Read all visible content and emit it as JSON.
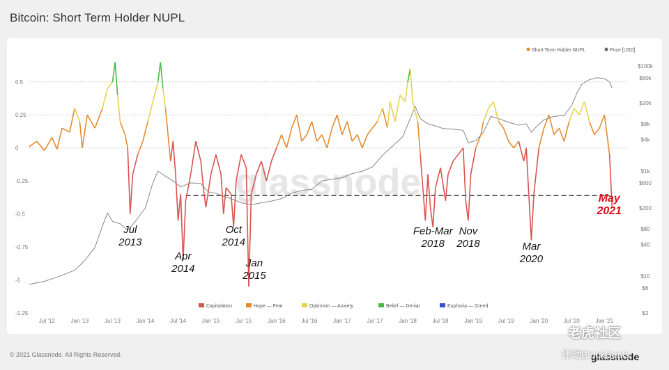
{
  "title": "Bitcoin: Short Term Holder NUPL",
  "footer": {
    "copyright": "© 2021 Glassnode. All Rights Reserved.",
    "brand": "glassnode"
  },
  "watermark": {
    "cn": "老虎社区",
    "cn2": "律动BlockBeats",
    "center": "glassnode"
  },
  "colors": {
    "capitulation": "#d9534f",
    "hope": "#e68a2e",
    "optimism": "#e8d44d",
    "belief": "#4cb84c",
    "euphoria": "#3a4fcf",
    "price": "#888888"
  },
  "chart_data": {
    "type": "line",
    "title": "Bitcoin: Short Term Holder NUPL",
    "x_ticks": [
      "Jul '12",
      "Jan '13",
      "Jul '13",
      "Jan '14",
      "Jul '14",
      "Jan '15",
      "Jul '15",
      "Jan '16",
      "Jul '16",
      "Jan '17",
      "Jul '17",
      "Jan '18",
      "Jul '18",
      "Jan '19",
      "Jul '19",
      "Jan '20",
      "Jul '20",
      "Jan '21"
    ],
    "left_axis": {
      "ticks": [
        "0.5",
        "0.25",
        "0",
        "-0.25",
        "-0.5",
        "-0.75",
        "-1",
        "-1.25"
      ],
      "values": [
        0.5,
        0.25,
        0,
        -0.25,
        -0.5,
        -0.75,
        -1,
        -1.25
      ],
      "range": [
        -1.25,
        0.62
      ]
    },
    "right_axis": {
      "scale": "log",
      "ticks": [
        "$100k",
        "$60k",
        "$20k",
        "$8k",
        "$4k",
        "$1k",
        "$600",
        "$200",
        "$80",
        "$40",
        "$10",
        "$6",
        "$2"
      ],
      "values": [
        100000,
        60000,
        20000,
        8000,
        4000,
        1000,
        600,
        200,
        80,
        40,
        10,
        6,
        2
      ],
      "range": [
        2,
        100000
      ]
    },
    "legend_top": [
      {
        "label": "Short Term Holder NUPL",
        "color": "#e68a2e"
      },
      {
        "label": "Price [USD]",
        "color": "#666666"
      }
    ],
    "legend_bottom": [
      {
        "label": "Capitulation",
        "color": "#d9534f"
      },
      {
        "label": "Hope — Fear",
        "color": "#e68a2e"
      },
      {
        "label": "Optimism — Anxiety",
        "color": "#e8d44d"
      },
      {
        "label": "Belief — Denial",
        "color": "#4cb84c"
      },
      {
        "label": "Euphoria — Greed",
        "color": "#3a4fcf"
      }
    ],
    "reference_line": {
      "value": -0.36,
      "style": "dashed"
    },
    "series": [
      {
        "name": "Short Term Holder NUPL",
        "points": [
          [
            0,
            0.01
          ],
          [
            0.15,
            0.05
          ],
          [
            0.3,
            -0.02
          ],
          [
            0.45,
            0.08
          ],
          [
            0.55,
            -0.01
          ],
          [
            0.65,
            0.15
          ],
          [
            0.8,
            0.12
          ],
          [
            0.9,
            0.3
          ],
          [
            1.0,
            0.2
          ],
          [
            1.05,
            0.0
          ],
          [
            1.15,
            0.25
          ],
          [
            1.3,
            0.15
          ],
          [
            1.45,
            0.3
          ],
          [
            1.55,
            0.45
          ],
          [
            1.65,
            0.5
          ],
          [
            1.7,
            0.65
          ],
          [
            1.75,
            0.4
          ],
          [
            1.8,
            0.2
          ],
          [
            1.9,
            0.1
          ],
          [
            1.95,
            0.0
          ],
          [
            2.0,
            -0.5
          ],
          [
            2.05,
            -0.2
          ],
          [
            2.15,
            -0.05
          ],
          [
            2.25,
            0.05
          ],
          [
            2.35,
            0.2
          ],
          [
            2.45,
            0.35
          ],
          [
            2.55,
            0.5
          ],
          [
            2.6,
            0.65
          ],
          [
            2.65,
            0.45
          ],
          [
            2.7,
            0.3
          ],
          [
            2.75,
            0.1
          ],
          [
            2.8,
            -0.1
          ],
          [
            2.85,
            0.05
          ],
          [
            2.9,
            -0.2
          ],
          [
            2.95,
            -0.55
          ],
          [
            3.0,
            -0.35
          ],
          [
            3.05,
            -0.85
          ],
          [
            3.1,
            -0.4
          ],
          [
            3.2,
            -0.2
          ],
          [
            3.3,
            0.05
          ],
          [
            3.4,
            -0.1
          ],
          [
            3.45,
            -0.3
          ],
          [
            3.5,
            -0.45
          ],
          [
            3.6,
            -0.2
          ],
          [
            3.7,
            -0.05
          ],
          [
            3.8,
            -0.2
          ],
          [
            3.85,
            -0.5
          ],
          [
            3.9,
            -0.3
          ],
          [
            4.0,
            -0.35
          ],
          [
            4.05,
            -0.6
          ],
          [
            4.1,
            -0.25
          ],
          [
            4.2,
            -0.05
          ],
          [
            4.3,
            -0.15
          ],
          [
            4.35,
            -1.05
          ],
          [
            4.4,
            -0.35
          ],
          [
            4.5,
            -0.2
          ],
          [
            4.6,
            -0.1
          ],
          [
            4.7,
            -0.25
          ],
          [
            4.8,
            -0.1
          ],
          [
            4.9,
            0.0
          ],
          [
            5.0,
            0.1
          ],
          [
            5.1,
            0.0
          ],
          [
            5.2,
            0.15
          ],
          [
            5.3,
            0.25
          ],
          [
            5.4,
            0.05
          ],
          [
            5.5,
            0.1
          ],
          [
            5.6,
            0.2
          ],
          [
            5.7,
            0.05
          ],
          [
            5.8,
            0.1
          ],
          [
            5.9,
            0.0
          ],
          [
            6.0,
            0.15
          ],
          [
            6.1,
            0.25
          ],
          [
            6.2,
            0.1
          ],
          [
            6.3,
            0.2
          ],
          [
            6.4,
            0.05
          ],
          [
            6.5,
            0.1
          ],
          [
            6.6,
            0.0
          ],
          [
            6.7,
            0.1
          ],
          [
            6.8,
            0.15
          ],
          [
            6.9,
            0.2
          ],
          [
            7.0,
            0.3
          ],
          [
            7.1,
            0.15
          ],
          [
            7.15,
            0.35
          ],
          [
            7.25,
            0.2
          ],
          [
            7.35,
            0.4
          ],
          [
            7.45,
            0.35
          ],
          [
            7.5,
            0.5
          ],
          [
            7.55,
            0.6
          ],
          [
            7.6,
            0.35
          ],
          [
            7.7,
            0.2
          ],
          [
            7.75,
            -0.05
          ],
          [
            7.8,
            -0.3
          ],
          [
            7.85,
            -0.55
          ],
          [
            7.9,
            -0.2
          ],
          [
            7.95,
            -0.45
          ],
          [
            8.0,
            -0.6
          ],
          [
            8.05,
            -0.3
          ],
          [
            8.15,
            -0.15
          ],
          [
            8.25,
            -0.4
          ],
          [
            8.3,
            -0.2
          ],
          [
            8.4,
            -0.1
          ],
          [
            8.5,
            -0.05
          ],
          [
            8.6,
            0.0
          ],
          [
            8.65,
            -0.4
          ],
          [
            8.7,
            -0.55
          ],
          [
            8.75,
            -0.2
          ],
          [
            8.85,
            0.0
          ],
          [
            8.95,
            0.1
          ],
          [
            9.0,
            0.2
          ],
          [
            9.1,
            0.3
          ],
          [
            9.2,
            0.35
          ],
          [
            9.3,
            0.2
          ],
          [
            9.4,
            0.15
          ],
          [
            9.5,
            0.05
          ],
          [
            9.6,
            0.0
          ],
          [
            9.7,
            0.05
          ],
          [
            9.8,
            -0.1
          ],
          [
            9.85,
            0.0
          ],
          [
            9.9,
            -0.35
          ],
          [
            9.95,
            -0.7
          ],
          [
            10.0,
            -0.35
          ],
          [
            10.1,
            0.0
          ],
          [
            10.2,
            0.15
          ],
          [
            10.3,
            0.25
          ],
          [
            10.4,
            0.1
          ],
          [
            10.5,
            0.15
          ],
          [
            10.6,
            0.05
          ],
          [
            10.7,
            0.2
          ],
          [
            10.8,
            0.3
          ],
          [
            10.9,
            0.25
          ],
          [
            11.0,
            0.35
          ],
          [
            11.1,
            0.2
          ],
          [
            11.2,
            0.1
          ],
          [
            11.3,
            0.15
          ],
          [
            11.4,
            0.25
          ],
          [
            11.45,
            0.1
          ],
          [
            11.5,
            -0.05
          ],
          [
            11.55,
            -0.45
          ]
        ]
      },
      {
        "name": "Price [USD]",
        "points": [
          [
            0,
            7
          ],
          [
            0.3,
            8
          ],
          [
            0.6,
            10
          ],
          [
            0.9,
            13
          ],
          [
            1.1,
            20
          ],
          [
            1.3,
            35
          ],
          [
            1.45,
            90
          ],
          [
            1.55,
            160
          ],
          [
            1.65,
            110
          ],
          [
            1.8,
            100
          ],
          [
            1.95,
            75
          ],
          [
            2.1,
            110
          ],
          [
            2.3,
            200
          ],
          [
            2.45,
            600
          ],
          [
            2.55,
            1000
          ],
          [
            2.7,
            800
          ],
          [
            2.85,
            650
          ],
          [
            3.0,
            500
          ],
          [
            3.2,
            600
          ],
          [
            3.4,
            580
          ],
          [
            3.55,
            400
          ],
          [
            3.7,
            380
          ],
          [
            3.85,
            330
          ],
          [
            4.0,
            300
          ],
          [
            4.2,
            250
          ],
          [
            4.4,
            230
          ],
          [
            4.6,
            250
          ],
          [
            4.8,
            270
          ],
          [
            5.0,
            300
          ],
          [
            5.2,
            380
          ],
          [
            5.4,
            430
          ],
          [
            5.6,
            450
          ],
          [
            5.8,
            650
          ],
          [
            6.0,
            700
          ],
          [
            6.2,
            750
          ],
          [
            6.4,
            900
          ],
          [
            6.6,
            1000
          ],
          [
            6.8,
            1200
          ],
          [
            7.0,
            2000
          ],
          [
            7.2,
            3000
          ],
          [
            7.4,
            4500
          ],
          [
            7.55,
            10000
          ],
          [
            7.65,
            17000
          ],
          [
            7.75,
            10000
          ],
          [
            7.9,
            8000
          ],
          [
            8.0,
            7500
          ],
          [
            8.2,
            6500
          ],
          [
            8.4,
            6300
          ],
          [
            8.6,
            6000
          ],
          [
            8.7,
            3500
          ],
          [
            8.85,
            3800
          ],
          [
            9.0,
            5500
          ],
          [
            9.15,
            11000
          ],
          [
            9.3,
            10000
          ],
          [
            9.5,
            8500
          ],
          [
            9.7,
            7500
          ],
          [
            9.85,
            8000
          ],
          [
            9.95,
            5500
          ],
          [
            10.05,
            7000
          ],
          [
            10.2,
            9500
          ],
          [
            10.4,
            11000
          ],
          [
            10.6,
            11500
          ],
          [
            10.75,
            18000
          ],
          [
            10.85,
            30000
          ],
          [
            10.95,
            45000
          ],
          [
            11.1,
            55000
          ],
          [
            11.25,
            60000
          ],
          [
            11.4,
            58000
          ],
          [
            11.5,
            50000
          ],
          [
            11.55,
            38000
          ]
        ]
      }
    ],
    "annotations": [
      {
        "label": "Jul\n2013",
        "x": 2.0
      },
      {
        "label": "Apr\n2014",
        "x": 3.05
      },
      {
        "label": "Oct\n2014",
        "x": 4.05
      },
      {
        "label": "Jan\n2015",
        "x": 4.35
      },
      {
        "label": "Feb-Mar\n2018",
        "x": 8.0
      },
      {
        "label": "Nov\n2018",
        "x": 8.7
      },
      {
        "label": "Mar\n2020",
        "x": 9.95
      },
      {
        "label": "May\n2021",
        "x": 11.55,
        "color": "#d9121b"
      }
    ]
  }
}
